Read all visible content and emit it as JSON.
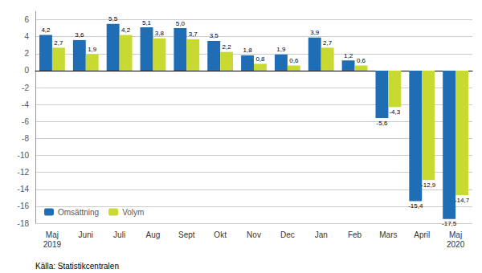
{
  "chart_data": {
    "type": "bar",
    "categories": [
      "Maj\n2019",
      "Juni",
      "Juli",
      "Aug",
      "Sept",
      "Okt",
      "Nov",
      "Dec",
      "Jan",
      "Feb",
      "Mars",
      "April",
      "Maj\n2020"
    ],
    "series": [
      {
        "name": "Omsättning",
        "color": "#1F6EB5",
        "values": [
          4.2,
          3.6,
          5.5,
          5.1,
          5.0,
          3.5,
          1.8,
          1.9,
          3.9,
          1.2,
          -5.6,
          -15.4,
          -17.5
        ],
        "value_labels": [
          "4,2",
          "3,6",
          "5,5",
          "5,1",
          "5,0",
          "3,5",
          "1,8",
          "1,9",
          "3,9",
          "1,2",
          "-5,6",
          "-15,4",
          "-17,5"
        ]
      },
      {
        "name": "Volym",
        "color": "#C8D932",
        "values": [
          2.7,
          1.9,
          4.2,
          3.8,
          3.7,
          2.2,
          0.8,
          0.6,
          2.7,
          0.6,
          -4.3,
          -12.9,
          -14.7
        ],
        "value_labels": [
          "2,7",
          "1,9",
          "4,2",
          "3,8",
          "3,7",
          "2,2",
          "0,8",
          "0,6",
          "2,7",
          "0,6",
          "-4,3",
          "-12,9",
          "-14,7"
        ]
      }
    ],
    "ylim": [
      -18,
      7
    ],
    "yticks": [
      -18,
      -16,
      -14,
      -12,
      -10,
      -8,
      -6,
      -4,
      -2,
      0,
      2,
      4,
      6
    ],
    "grid": true,
    "legend": "lower left",
    "data_labels": true,
    "annotations": [
      "Källa: Statistikcentralen"
    ]
  }
}
